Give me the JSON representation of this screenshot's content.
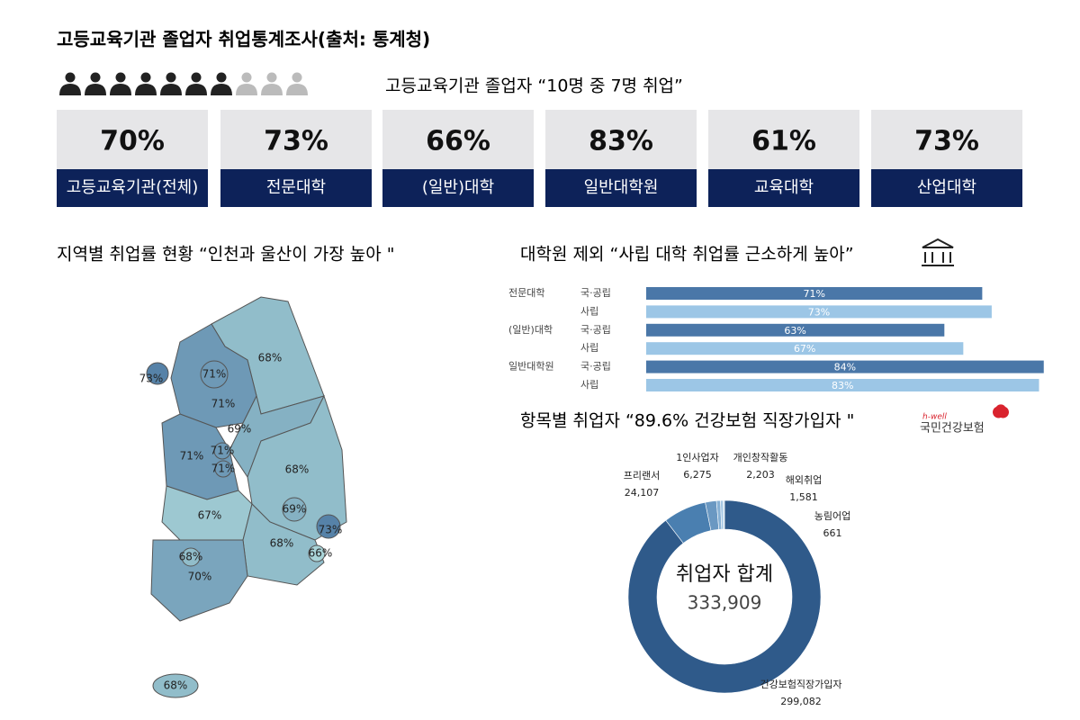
{
  "title": "고등교육기관 졸업자 취업통계조사(출처: 통계청)",
  "people": {
    "employed": 7,
    "total": 10,
    "caption": "고등교육기관 졸업자 “10명 중 7명 취업”"
  },
  "cards": [
    {
      "value": "70%",
      "label": "고등교육기관(전체)"
    },
    {
      "value": "73%",
      "label": "전문대학"
    },
    {
      "value": "66%",
      "label": "(일반)대학"
    },
    {
      "value": "83%",
      "label": "일반대학원"
    },
    {
      "value": "61%",
      "label": "교육대학"
    },
    {
      "value": "73%",
      "label": "산업대학"
    }
  ],
  "map": {
    "title": "지역별 취업률 현황 “인천과 울산이 가장 높아 \"",
    "values": [
      68,
      71,
      73,
      71,
      69,
      71,
      68,
      67,
      68,
      70,
      71,
      71,
      69,
      73,
      66,
      68,
      68
    ],
    "value_labels": [
      "68%",
      "71%",
      "73%",
      "71%",
      "69%",
      "71%",
      "68%",
      "67%",
      "68%",
      "70%",
      "71%",
      "71%",
      "69%",
      "73%",
      "66%",
      "68%",
      "68%"
    ]
  },
  "chart_data": [
    {
      "type": "bar",
      "title": "대학원 제외 “사립 대학 취업률 근소하게 높아”",
      "categories": [
        "전문대학",
        "(일반)대학",
        "일반대학원"
      ],
      "xlim": [
        0,
        85
      ],
      "series": [
        {
          "name": "국·공립",
          "color": "#4a77a8",
          "values": [
            71,
            63,
            84
          ],
          "value_labels": [
            "71%",
            "63%",
            "84%"
          ]
        },
        {
          "name": "사립",
          "color": "#9cc6e6",
          "values": [
            73,
            67,
            83
          ],
          "value_labels": [
            "73%",
            "67%",
            "83%"
          ]
        }
      ]
    },
    {
      "type": "pie",
      "title": "항목별 취업자 “89.6% 건강보험 직장가입자 \"",
      "logo": [
        "h-well",
        "국민건강보험"
      ],
      "categories": [
        "건강보험직장가입자",
        "프리랜서",
        "1인사업자",
        "개인창작활동",
        "해외취업",
        "농림어업"
      ],
      "values": [
        299082,
        24107,
        6275,
        2203,
        1581,
        661
      ],
      "value_labels": [
        "299,082",
        "24,107",
        "6,275",
        "2,203",
        "1,581",
        "661"
      ],
      "colors": [
        "#2f5a8a",
        "#4a7fb0",
        "#6a98c2",
        "#86b0d4",
        "#a6c8e4",
        "#cfe3f2"
      ],
      "center_title": "취업자 합계",
      "total": {
        "value": 333909,
        "label": "333,909"
      }
    }
  ]
}
